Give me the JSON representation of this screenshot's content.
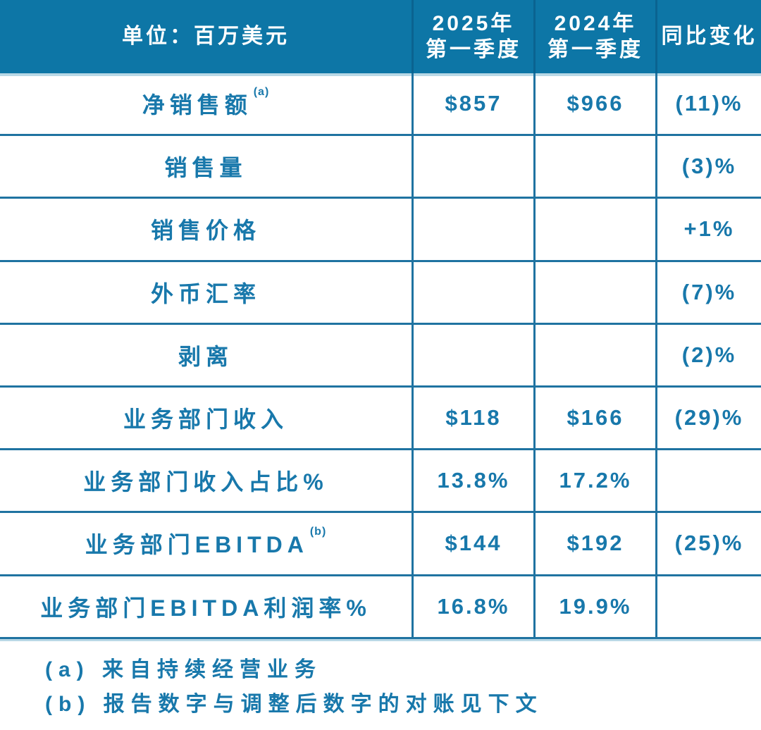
{
  "colors": {
    "header_bg": "#0d76a6",
    "header_text": "#ffffff",
    "body_text": "#1878ab",
    "grid": "#1f73a1",
    "header_divider": "#0a6390",
    "edge_glow": "#b9d8e6"
  },
  "table": {
    "header": {
      "unit_label": "单位：百万美元",
      "col_2025_line1": "2025年",
      "col_2025_line2": "第一季度",
      "col_2024_line1": "2024年",
      "col_2024_line2": "第一季度",
      "col_yoy": "同比变化"
    },
    "rows": [
      {
        "label": "净销售额",
        "sup": "(a)",
        "q1_2025": "$857",
        "q1_2024": "$966",
        "yoy": "(11)%"
      },
      {
        "label": "销售量",
        "sup": "",
        "q1_2025": "",
        "q1_2024": "",
        "yoy": "(3)%"
      },
      {
        "label": "销售价格",
        "sup": "",
        "q1_2025": "",
        "q1_2024": "",
        "yoy": "+1%"
      },
      {
        "label": "外币汇率",
        "sup": "",
        "q1_2025": "",
        "q1_2024": "",
        "yoy": "(7)%"
      },
      {
        "label": "剥离",
        "sup": "",
        "q1_2025": "",
        "q1_2024": "",
        "yoy": "(2)%"
      },
      {
        "label": "业务部门收入",
        "sup": "",
        "q1_2025": "$118",
        "q1_2024": "$166",
        "yoy": "(29)%"
      },
      {
        "label": "业务部门收入占比%",
        "sup": "",
        "q1_2025": "13.8%",
        "q1_2024": "17.2%",
        "yoy": ""
      },
      {
        "label": "业务部门EBITDA",
        "sup": "(b)",
        "q1_2025": "$144",
        "q1_2024": "$192",
        "yoy": "(25)%"
      },
      {
        "label": "业务部门EBITDA利润率%",
        "sup": "",
        "q1_2025": "16.8%",
        "q1_2024": "19.9%",
        "yoy": ""
      }
    ]
  },
  "footnotes": [
    "(a) 来自持续经营业务",
    "(b) 报告数字与调整后数字的对账见下文"
  ],
  "chart_data": {
    "type": "table",
    "title": "单位：百万美元",
    "columns": [
      "单位：百万美元",
      "2025年第一季度",
      "2024年第一季度",
      "同比变化"
    ],
    "rows": [
      [
        "净销售额(a)",
        "$857",
        "$966",
        "(11)%"
      ],
      [
        "销售量",
        "",
        "",
        "(3)%"
      ],
      [
        "销售价格",
        "",
        "",
        "+1%"
      ],
      [
        "外币汇率",
        "",
        "",
        "(7)%"
      ],
      [
        "剥离",
        "",
        "",
        "(2)%"
      ],
      [
        "业务部门收入",
        "$118",
        "$166",
        "(29)%"
      ],
      [
        "业务部门收入占比%",
        "13.8%",
        "17.2%",
        ""
      ],
      [
        "业务部门EBITDA(b)",
        "$144",
        "$192",
        "(25)%"
      ],
      [
        "业务部门EBITDA利润率%",
        "16.8%",
        "19.9%",
        ""
      ]
    ],
    "footnotes": [
      "(a) 来自持续经营业务",
      "(b) 报告数字与调整后数字的对账见下文"
    ]
  }
}
